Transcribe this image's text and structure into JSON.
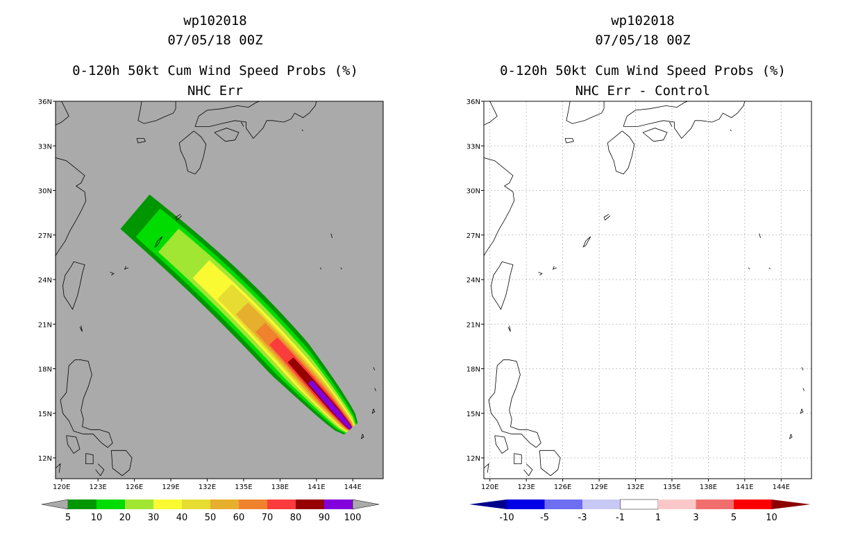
{
  "panels": [
    {
      "title_lines": [
        "wp102018",
        "07/05/18 00Z",
        "0-120h 50kt Cum Wind Speed Probs (%)",
        "NHC Err"
      ],
      "background": "#aaaaaa",
      "colorbar_labels": [
        "5",
        "10",
        "20",
        "30",
        "40",
        "50",
        "60",
        "70",
        "80",
        "90",
        "100"
      ],
      "colorbar_colors": [
        "#009600",
        "#00dc00",
        "#a0e632",
        "#fafa32",
        "#e6dc32",
        "#e6af2d",
        "#f0822d",
        "#fa3c3c",
        "#960000",
        "#8200dc"
      ],
      "colorbar_end_color": "#aaaaaa"
    },
    {
      "title_lines": [
        "wp102018",
        "07/05/18 00Z",
        "0-120h 50kt Cum Wind Speed Probs (%)",
        "NHC Err - Control"
      ],
      "background": "#ffffff",
      "colorbar_labels": [
        "-10",
        "-5",
        "-3",
        "-1",
        "1",
        "3",
        "5",
        "10"
      ],
      "colorbar_colors": [
        "#0000e6",
        "#6e6ef0",
        "#c8c8f5",
        "#ffffff",
        "#fac8c8",
        "#f06e6e",
        "#fa0000"
      ],
      "colorbar_left_color": "#00008c",
      "colorbar_right_color": "#8c0000"
    }
  ],
  "chart_data": [
    {
      "type": "heatmap",
      "title": "wp102018 07/05/18 00Z 0-120h 50kt Cum Wind Speed Probs (%) NHC Err",
      "xlabel": "",
      "ylabel": "",
      "x_tick_labels": [
        "120E",
        "123E",
        "126E",
        "129E",
        "132E",
        "135E",
        "138E",
        "141E",
        "144E"
      ],
      "y_tick_labels": [
        "12N",
        "15N",
        "18N",
        "21N",
        "24N",
        "27N",
        "30N",
        "33N",
        "36N"
      ],
      "x_ticks_deg": [
        120,
        123,
        126,
        129,
        132,
        135,
        138,
        141,
        144
      ],
      "y_ticks_deg": [
        12,
        15,
        18,
        21,
        24,
        27,
        30,
        33,
        36
      ],
      "xlim": [
        119.5,
        146.5
      ],
      "ylim": [
        10.6,
        36
      ],
      "levels": [
        5,
        10,
        20,
        30,
        40,
        50,
        60,
        70,
        80,
        90,
        100
      ],
      "track": {
        "start_lon": 143.8,
        "start_lat": 14.0,
        "end_lon": 126.0,
        "end_lat": 28.6,
        "end_thresholds": [
          0.995,
          0.935,
          0.84,
          0.69,
          0.58,
          0.5,
          0.415,
          0.355,
          0.275,
          0.185
        ],
        "widths_deg": [
          2.0,
          1.65,
          1.35,
          1.05,
          0.88,
          0.72,
          0.55,
          0.42,
          0.28,
          0.17
        ]
      },
      "grid": false
    },
    {
      "type": "heatmap",
      "title": "wp102018 07/05/18 00Z 0-120h 50kt Cum Wind Speed Probs (%) NHC Err - Control",
      "xlabel": "",
      "ylabel": "",
      "x_tick_labels": [
        "120E",
        "123E",
        "126E",
        "129E",
        "132E",
        "135E",
        "138E",
        "141E",
        "144E"
      ],
      "y_tick_labels": [
        "12N",
        "15N",
        "18N",
        "21N",
        "24N",
        "27N",
        "30N",
        "33N",
        "36N"
      ],
      "x_ticks_deg": [
        120,
        123,
        126,
        129,
        132,
        135,
        138,
        141,
        144
      ],
      "y_ticks_deg": [
        12,
        15,
        18,
        21,
        24,
        27,
        30,
        33,
        36
      ],
      "xlim": [
        119.5,
        146.5
      ],
      "ylim": [
        10.6,
        36
      ],
      "levels": [
        -10,
        -5,
        -3,
        -1,
        1,
        3,
        5,
        10
      ],
      "grid": true
    }
  ],
  "coastlines": [
    [
      [
        120.0,
        36.0
      ],
      [
        120.3,
        35.5
      ],
      [
        120.6,
        35.0
      ],
      [
        120.0,
        34.6
      ],
      [
        119.5,
        34.4
      ]
    ],
    [
      [
        119.5,
        32.2
      ],
      [
        120.4,
        32.0
      ],
      [
        121.0,
        31.6
      ],
      [
        121.9,
        31.0
      ],
      [
        121.6,
        30.5
      ],
      [
        121.2,
        30.3
      ],
      [
        121.9,
        29.9
      ],
      [
        122.0,
        29.3
      ],
      [
        121.6,
        28.6
      ],
      [
        121.2,
        28.0
      ],
      [
        120.7,
        27.3
      ],
      [
        120.3,
        26.6
      ],
      [
        119.8,
        26.0
      ],
      [
        119.5,
        25.6
      ]
    ],
    [
      [
        121.0,
        25.2
      ],
      [
        121.9,
        25.0
      ],
      [
        121.7,
        24.4
      ],
      [
        121.5,
        23.6
      ],
      [
        121.3,
        22.9
      ],
      [
        120.9,
        22.0
      ],
      [
        120.6,
        22.4
      ],
      [
        120.2,
        22.9
      ],
      [
        120.1,
        23.6
      ],
      [
        120.3,
        24.3
      ],
      [
        120.8,
        24.9
      ],
      [
        121.0,
        25.2
      ]
    ],
    [
      [
        129.4,
        36.0
      ],
      [
        129.4,
        35.5
      ],
      [
        129.2,
        35.2
      ],
      [
        128.6,
        35.0
      ],
      [
        127.8,
        34.7
      ],
      [
        126.8,
        34.5
      ],
      [
        126.3,
        34.7
      ],
      [
        126.5,
        35.5
      ],
      [
        126.6,
        36.0
      ]
    ],
    [
      [
        126.2,
        33.5
      ],
      [
        126.8,
        33.5
      ],
      [
        126.9,
        33.3
      ],
      [
        126.3,
        33.2
      ],
      [
        126.2,
        33.5
      ]
    ],
    [
      [
        130.9,
        34.0
      ],
      [
        131.5,
        33.6
      ],
      [
        131.9,
        33.1
      ],
      [
        131.7,
        32.3
      ],
      [
        131.4,
        31.5
      ],
      [
        131.0,
        31.1
      ],
      [
        130.4,
        31.3
      ],
      [
        130.2,
        32.0
      ],
      [
        129.8,
        32.7
      ],
      [
        129.7,
        33.2
      ],
      [
        130.3,
        33.6
      ],
      [
        130.9,
        34.0
      ]
    ],
    [
      [
        132.6,
        33.9
      ],
      [
        133.5,
        33.3
      ],
      [
        134.3,
        33.4
      ],
      [
        134.6,
        33.9
      ],
      [
        133.6,
        34.2
      ],
      [
        132.6,
        33.9
      ]
    ],
    [
      [
        131.0,
        34.3
      ],
      [
        132.2,
        34.3
      ],
      [
        133.2,
        34.5
      ],
      [
        134.3,
        34.7
      ],
      [
        135.2,
        34.6
      ],
      [
        135.2,
        34.2
      ],
      [
        135.8,
        33.5
      ],
      [
        136.6,
        34.2
      ],
      [
        136.9,
        34.7
      ],
      [
        137.4,
        34.7
      ],
      [
        138.3,
        34.6
      ],
      [
        138.9,
        34.8
      ],
      [
        139.2,
        35.2
      ],
      [
        139.9,
        34.9
      ],
      [
        140.4,
        35.2
      ],
      [
        140.9,
        35.7
      ],
      [
        141.0,
        36.0
      ]
    ],
    [
      [
        131.0,
        34.3
      ],
      [
        131.3,
        35.0
      ],
      [
        132.0,
        35.4
      ],
      [
        133.2,
        35.5
      ],
      [
        134.5,
        35.7
      ],
      [
        135.4,
        35.6
      ],
      [
        136.0,
        35.9
      ],
      [
        136.3,
        36.0
      ]
    ],
    [
      [
        129.8,
        28.4
      ],
      [
        129.4,
        28.2
      ],
      [
        129.5,
        28.0
      ],
      [
        129.9,
        28.3
      ]
    ],
    [
      [
        128.3,
        26.9
      ],
      [
        127.9,
        26.6
      ],
      [
        127.7,
        26.2
      ],
      [
        127.9,
        26.3
      ],
      [
        128.3,
        26.9
      ]
    ],
    [
      [
        125.3,
        24.9
      ],
      [
        125.2,
        24.7
      ],
      [
        125.5,
        24.8
      ]
    ],
    [
      [
        124.0,
        24.5
      ],
      [
        124.3,
        24.4
      ],
      [
        124.1,
        24.3
      ]
    ],
    [
      [
        121.5,
        20.8
      ],
      [
        121.7,
        20.5
      ],
      [
        121.6,
        20.9
      ]
    ],
    [
      [
        121.6,
        18.6
      ],
      [
        122.2,
        18.5
      ],
      [
        122.5,
        17.6
      ],
      [
        122.2,
        16.8
      ],
      [
        121.8,
        16.0
      ],
      [
        121.6,
        15.2
      ],
      [
        121.8,
        14.6
      ],
      [
        121.7,
        14.1
      ],
      [
        122.4,
        13.9
      ],
      [
        123.1,
        13.9
      ],
      [
        123.9,
        13.7
      ],
      [
        124.2,
        13.0
      ],
      [
        123.8,
        12.7
      ],
      [
        123.3,
        13.0
      ],
      [
        122.6,
        13.6
      ],
      [
        121.8,
        13.6
      ],
      [
        121.0,
        13.8
      ],
      [
        120.6,
        14.5
      ],
      [
        120.1,
        15.0
      ],
      [
        119.9,
        15.9
      ],
      [
        120.4,
        16.4
      ],
      [
        120.5,
        17.3
      ],
      [
        120.6,
        18.2
      ],
      [
        121.1,
        18.6
      ],
      [
        121.6,
        18.6
      ]
    ],
    [
      [
        124.1,
        12.5
      ],
      [
        125.3,
        12.5
      ],
      [
        125.8,
        12.0
      ],
      [
        125.6,
        11.2
      ],
      [
        125.0,
        10.8
      ],
      [
        124.2,
        11.3
      ],
      [
        124.1,
        12.5
      ]
    ],
    [
      [
        120.4,
        13.5
      ],
      [
        121.2,
        13.4
      ],
      [
        121.5,
        12.6
      ],
      [
        121.0,
        12.3
      ],
      [
        120.5,
        12.9
      ],
      [
        120.4,
        13.5
      ]
    ],
    [
      [
        122.0,
        12.3
      ],
      [
        122.6,
        12.2
      ],
      [
        122.6,
        11.6
      ],
      [
        122.0,
        11.6
      ],
      [
        122.0,
        12.3
      ]
    ],
    [
      [
        123.0,
        11.6
      ],
      [
        123.5,
        11.2
      ],
      [
        123.2,
        10.8
      ],
      [
        122.8,
        11.2
      ]
    ],
    [
      [
        119.5,
        11.3
      ],
      [
        119.9,
        11.6
      ],
      [
        119.8,
        11.0
      ]
    ],
    [
      [
        145.7,
        15.3
      ],
      [
        145.8,
        15.1
      ],
      [
        145.6,
        15.0
      ],
      [
        145.7,
        15.3
      ]
    ],
    [
      [
        144.8,
        13.6
      ],
      [
        144.9,
        13.4
      ],
      [
        144.7,
        13.3
      ],
      [
        144.8,
        13.6
      ]
    ],
    [
      [
        145.7,
        18.1
      ],
      [
        145.8,
        17.9
      ]
    ],
    [
      [
        145.8,
        16.7
      ],
      [
        145.9,
        16.5
      ]
    ],
    [
      [
        142.2,
        27.1
      ],
      [
        142.3,
        26.8
      ]
    ],
    [
      [
        143.0,
        24.8
      ],
      [
        143.1,
        24.7
      ]
    ],
    [
      [
        141.3,
        24.8
      ],
      [
        141.4,
        24.7
      ]
    ],
    [
      [
        134.8,
        34.6
      ],
      [
        135.0,
        34.3
      ]
    ],
    [
      [
        139.8,
        34.1
      ],
      [
        139.9,
        34.0
      ]
    ]
  ]
}
